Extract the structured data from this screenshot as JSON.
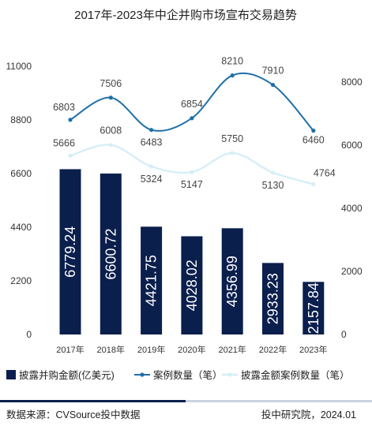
{
  "chart_data": {
    "type": "bar",
    "title": "2017年-2023年中企并购市场宣布交易趋势",
    "categories": [
      "2017年",
      "2018年",
      "2019年",
      "2020年",
      "2021年",
      "2022年",
      "2023年"
    ],
    "series": [
      {
        "name": "披露并购金额(亿美元)",
        "type": "bar",
        "axis": "left",
        "values": [
          6779.24,
          6600.72,
          4421.75,
          4028.02,
          4356.99,
          2933.23,
          2157.84
        ],
        "labels": [
          "6779.24",
          "6600.72",
          "4421.75",
          "4028.02",
          "4356.99",
          "2933.23",
          "2157.84"
        ]
      },
      {
        "name": "案例数量（笔）",
        "type": "line",
        "axis": "right",
        "values": [
          6803,
          7506,
          6483,
          6854,
          8210,
          7910,
          6460
        ],
        "labels": [
          "6803",
          "7506",
          "6483",
          "6854",
          "8210",
          "7910",
          "6460"
        ]
      },
      {
        "name": "披露金额案例数量（笔）",
        "type": "line",
        "axis": "right",
        "values": [
          5666,
          6008,
          5324,
          5147,
          5750,
          5130,
          4764
        ],
        "labels": [
          "5666",
          "6008",
          "5324",
          "5147",
          "5750",
          "5130",
          "4764"
        ]
      }
    ],
    "left_axis": {
      "ticks": [
        "0",
        "2200",
        "4400",
        "6600",
        "8800",
        "11000"
      ],
      "range": [
        0,
        11000
      ]
    },
    "right_axis": {
      "ticks": [
        "0",
        "2000",
        "4000",
        "6000",
        "8000"
      ],
      "range": [
        0,
        8500
      ]
    },
    "legend_position": "bottom",
    "grid": false,
    "colors": {
      "bar": "#0b1f4d",
      "count_line": "#1f6fa8",
      "disclosed_line": "#d6eef7"
    }
  },
  "footer": {
    "source": "数据来源：CVSource投中数据",
    "credit": "投中研究院，2024.01"
  }
}
